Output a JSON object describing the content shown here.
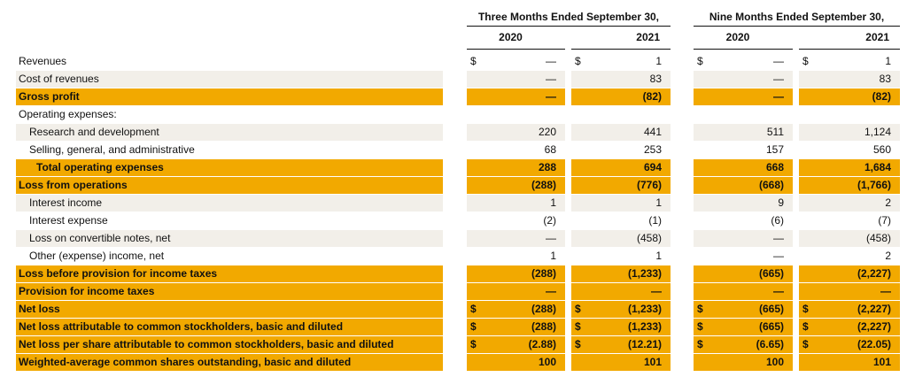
{
  "table": {
    "currency_symbol": "$",
    "column_groups": [
      "Three Months Ended September 30,",
      "Nine Months Ended September 30,"
    ],
    "years": [
      "2020",
      "2021",
      "2020",
      "2021"
    ],
    "rows": [
      {
        "label": "Revenues",
        "style": "plain",
        "indent": 0,
        "currency": true,
        "values": [
          "—",
          "1",
          "—",
          "1"
        ]
      },
      {
        "label": "Cost of revenues",
        "style": "shaded",
        "indent": 0,
        "currency": false,
        "values": [
          "—",
          "83",
          "—",
          "83"
        ]
      },
      {
        "label": "Gross profit",
        "style": "highlight",
        "indent": 0,
        "currency": false,
        "values": [
          "—",
          "(82)",
          "—",
          "(82)"
        ]
      },
      {
        "label": "Operating expenses:",
        "style": "plain",
        "indent": 0,
        "currency": false,
        "values": []
      },
      {
        "label": "Research and development",
        "style": "shaded",
        "indent": 1,
        "currency": false,
        "values": [
          "220",
          "441",
          "511",
          "1,124"
        ]
      },
      {
        "label": "Selling, general, and administrative",
        "style": "plain",
        "indent": 1,
        "currency": false,
        "values": [
          "68",
          "253",
          "157",
          "560"
        ]
      },
      {
        "label": "Total operating expenses",
        "style": "highlight",
        "indent": 2,
        "currency": false,
        "values": [
          "288",
          "694",
          "668",
          "1,684"
        ]
      },
      {
        "label": "Loss from operations",
        "style": "highlight",
        "indent": 0,
        "currency": false,
        "values": [
          "(288)",
          "(776)",
          "(668)",
          "(1,766)"
        ]
      },
      {
        "label": "Interest income",
        "style": "shaded",
        "indent": 1,
        "currency": false,
        "values": [
          "1",
          "1",
          "9",
          "2"
        ]
      },
      {
        "label": "Interest expense",
        "style": "plain",
        "indent": 1,
        "currency": false,
        "values": [
          "(2)",
          "(1)",
          "(6)",
          "(7)"
        ]
      },
      {
        "label": "Loss on convertible notes, net",
        "style": "shaded",
        "indent": 1,
        "currency": false,
        "values": [
          "—",
          "(458)",
          "—",
          "(458)"
        ]
      },
      {
        "label": "Other (expense) income, net",
        "style": "plain",
        "indent": 1,
        "currency": false,
        "values": [
          "1",
          "1",
          "—",
          "2"
        ]
      },
      {
        "label": "Loss before provision for income taxes",
        "style": "highlight",
        "indent": 0,
        "currency": false,
        "values": [
          "(288)",
          "(1,233)",
          "(665)",
          "(2,227)"
        ]
      },
      {
        "label": "Provision for income taxes",
        "style": "highlight",
        "indent": 0,
        "currency": false,
        "values": [
          "—",
          "—",
          "—",
          "—"
        ]
      },
      {
        "label": "Net loss",
        "style": "highlight",
        "indent": 0,
        "currency": true,
        "values": [
          "(288)",
          "(1,233)",
          "(665)",
          "(2,227)"
        ]
      },
      {
        "label": "Net loss attributable to common stockholders, basic and diluted",
        "style": "highlight",
        "indent": 0,
        "currency": true,
        "values": [
          "(288)",
          "(1,233)",
          "(665)",
          "(2,227)"
        ]
      },
      {
        "label": "Net loss per share attributable to common stockholders, basic and diluted",
        "style": "highlight",
        "indent": 0,
        "currency": true,
        "values": [
          "(2.88)",
          "(12.21)",
          "(6.65)",
          "(22.05)"
        ]
      },
      {
        "label": "Weighted-average common shares outstanding, basic and diluted",
        "style": "highlight",
        "indent": 0,
        "currency": false,
        "values": [
          "100",
          "101",
          "100",
          "101"
        ]
      }
    ]
  }
}
